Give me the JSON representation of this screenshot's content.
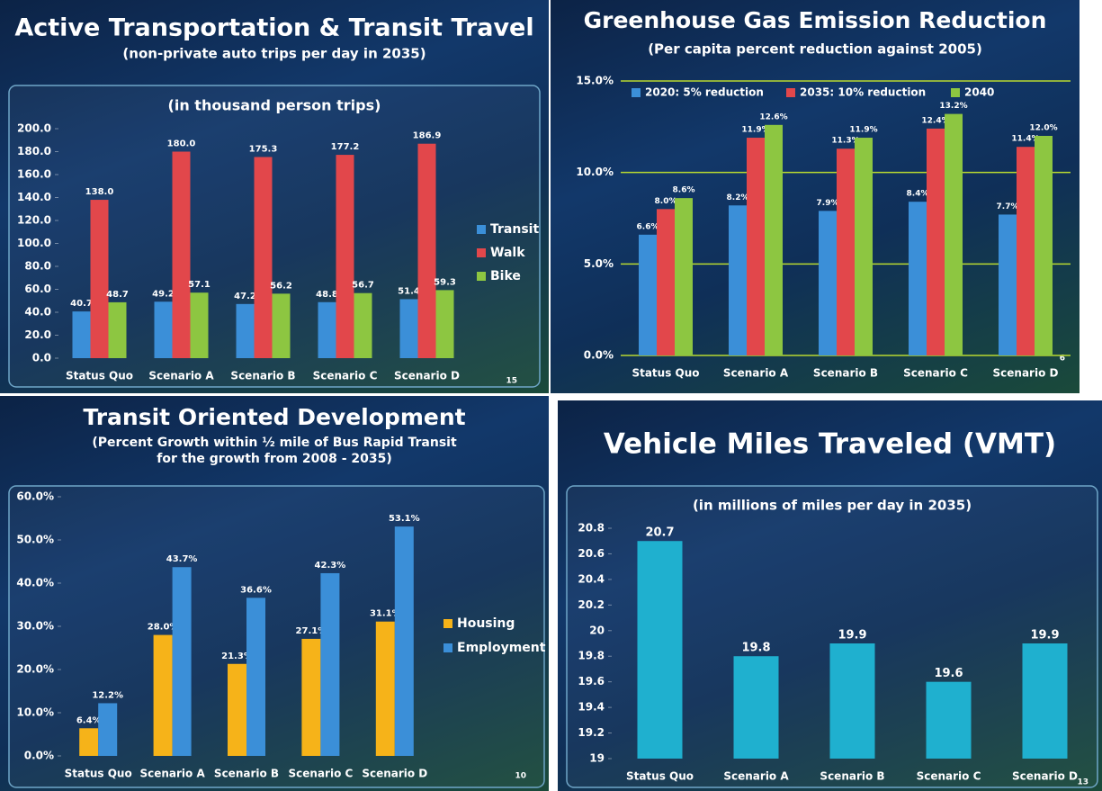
{
  "chart_data": [
    {
      "type": "bar",
      "title": "Active Transportation & Transit Travel",
      "subtitle": [
        "(non-private auto trips per day in 2035)"
      ],
      "note": "(in thousand person trips)",
      "page_number": "15",
      "categories": [
        "Status Quo",
        "Scenario A",
        "Scenario B",
        "Scenario C",
        "Scenario D"
      ],
      "series": [
        {
          "name": "Transit",
          "color": "#3b8fd8",
          "values": [
            40.7,
            49.2,
            47.2,
            48.8,
            51.4
          ]
        },
        {
          "name": "Walk",
          "color": "#e2474b",
          "values": [
            138.0,
            180.0,
            175.3,
            177.2,
            186.9
          ],
          "value_labels": [
            "138.0",
            "180.0",
            "175.3",
            "177.2",
            "186.9"
          ]
        },
        {
          "name": "Bike",
          "color": "#8dc641",
          "values": [
            48.7,
            57.1,
            56.2,
            56.7,
            59.3
          ]
        }
      ],
      "ylim": [
        0,
        200
      ],
      "yticks": [
        {
          "value": 0,
          "label": "0.0"
        },
        {
          "value": 20,
          "label": "20.0"
        },
        {
          "value": 40,
          "label": "40.0"
        },
        {
          "value": 60,
          "label": "60.0"
        },
        {
          "value": 80,
          "label": "80.0"
        },
        {
          "value": 100,
          "label": "100.0"
        },
        {
          "value": 120,
          "label": "120.0"
        },
        {
          "value": 140,
          "label": "140.0"
        },
        {
          "value": 160,
          "label": "160.0"
        },
        {
          "value": 180,
          "label": "180.0"
        },
        {
          "value": 200,
          "label": "200.0"
        }
      ],
      "grid": false,
      "legend": "right"
    },
    {
      "type": "bar",
      "title": "Greenhouse Gas Emission Reduction",
      "subtitle": [
        "(Per capita percent reduction against 2005)"
      ],
      "page_number": "6",
      "categories": [
        "Status Quo",
        "Scenario A",
        "Scenario B",
        "Scenario C",
        "Scenario D"
      ],
      "series": [
        {
          "name": "2020:  5% reduction",
          "color": "#3b8fd8",
          "values": [
            6.6,
            8.2,
            7.9,
            8.4,
            7.7
          ],
          "value_labels": [
            "6.6%",
            "8.2%",
            "7.9%",
            "8.4%",
            "7.7%"
          ]
        },
        {
          "name": "2035: 10% reduction",
          "color": "#e2474b",
          "values": [
            8.0,
            11.9,
            11.3,
            12.4,
            11.4
          ],
          "value_labels": [
            "8.0%",
            "11.9%",
            "11.3%",
            "12.4%",
            "11.4%"
          ]
        },
        {
          "name": "2040",
          "color": "#8dc641",
          "values": [
            8.6,
            12.6,
            11.9,
            13.2,
            12.0
          ],
          "value_labels": [
            "8.6%",
            "12.6%",
            "11.9%",
            "13.2%",
            "12.0%"
          ]
        }
      ],
      "ylim": [
        0,
        15
      ],
      "yticks": [
        {
          "value": 0,
          "label": "0.0%"
        },
        {
          "value": 5,
          "label": "5.0%"
        },
        {
          "value": 10,
          "label": "10.0%"
        },
        {
          "value": 15,
          "label": "15.0%"
        }
      ],
      "grid": true,
      "grid_color": "#b8d830",
      "legend": "top"
    },
    {
      "type": "bar",
      "title": "Transit Oriented Development",
      "subtitle": [
        "(Percent Growth within ½ mile of Bus Rapid Transit",
        "for the growth from 2008 - 2035)"
      ],
      "page_number": "10",
      "categories": [
        "Status Quo",
        "Scenario A",
        "Scenario B",
        "Scenario C",
        "Scenario D"
      ],
      "series": [
        {
          "name": "Housing",
          "color": "#f6b319",
          "values": [
            6.4,
            28.0,
            21.3,
            27.1,
            31.1
          ],
          "value_labels": [
            "6.4%",
            "28.0%",
            "21.3%",
            "27.1%",
            "31.1%"
          ]
        },
        {
          "name": "Employment",
          "color": "#3b8fd8",
          "values": [
            12.2,
            43.7,
            36.6,
            42.3,
            53.1
          ],
          "value_labels": [
            "12.2%",
            "43.7%",
            "36.6%",
            "42.3%",
            "53.1%"
          ]
        }
      ],
      "ylim": [
        0,
        60
      ],
      "yticks": [
        {
          "value": 0,
          "label": "0.0%"
        },
        {
          "value": 10,
          "label": "10.0%"
        },
        {
          "value": 20,
          "label": "20.0%"
        },
        {
          "value": 30,
          "label": "30.0%"
        },
        {
          "value": 40,
          "label": "40.0%"
        },
        {
          "value": 50,
          "label": "50.0%"
        },
        {
          "value": 60,
          "label": "60.0%"
        }
      ],
      "grid": false,
      "legend": "right"
    },
    {
      "type": "bar",
      "title": "Vehicle Miles Traveled (VMT)",
      "note": "(in millions of miles per day in 2035)",
      "page_number": "13",
      "categories": [
        "Status Quo",
        "Scenario A",
        "Scenario B",
        "Scenario C",
        "Scenario D"
      ],
      "series": [
        {
          "color": "#1fb0cf",
          "values": [
            20.7,
            19.8,
            19.9,
            19.6,
            19.9
          ]
        }
      ],
      "ylim": [
        19,
        20.8
      ],
      "yticks": [
        19,
        19.2,
        19.4,
        19.6,
        19.8,
        20,
        20.2,
        20.4,
        20.6,
        20.8
      ],
      "grid": false
    }
  ]
}
